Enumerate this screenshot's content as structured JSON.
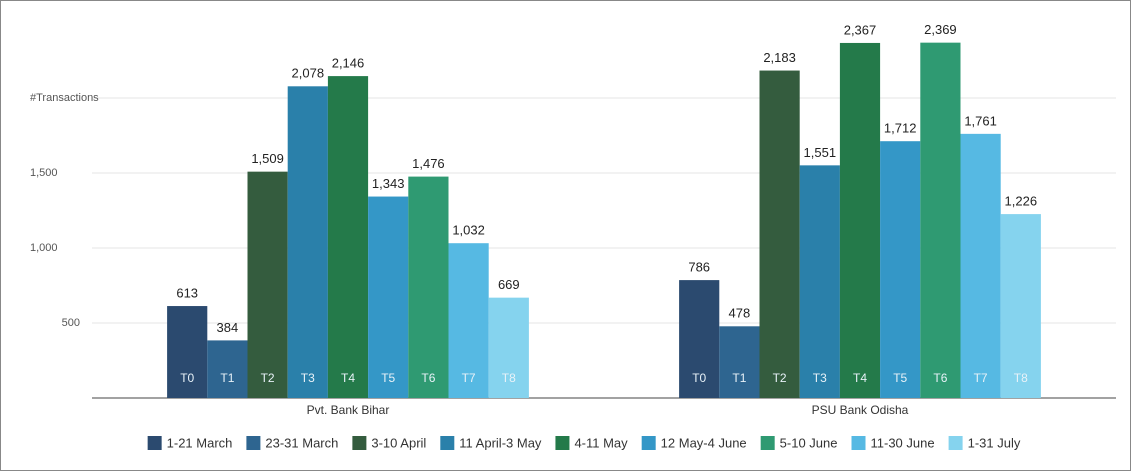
{
  "chart_data": {
    "type": "bar",
    "categories": [
      "Pvt. Bank Bihar",
      "PSU Bank Odisha"
    ],
    "series": [
      {
        "name": "1-21 March",
        "color": "#2b4a6f",
        "values": [
          613,
          786
        ],
        "value_labels": [
          "613",
          "786"
        ]
      },
      {
        "name": "23-31 March",
        "color": "#2e6590",
        "values": [
          384,
          478
        ],
        "value_labels": [
          "384",
          "478"
        ]
      },
      {
        "name": "3-10 April",
        "color": "#345c3e",
        "values": [
          1509,
          2183
        ],
        "value_labels": [
          "1,509",
          "2,183"
        ]
      },
      {
        "name": "11 April-3 May",
        "color": "#2a80aa",
        "values": [
          2078,
          1551
        ],
        "value_labels": [
          "2,078",
          "1,551"
        ]
      },
      {
        "name": "4-11 May",
        "color": "#247a4a",
        "values": [
          2146,
          2367
        ],
        "value_labels": [
          "2,146",
          "2,367"
        ]
      },
      {
        "name": "12 May-4 June",
        "color": "#3497c7",
        "values": [
          1343,
          1712
        ],
        "value_labels": [
          "1,343",
          "1,712"
        ]
      },
      {
        "name": "5-10 June",
        "color": "#2f9a72",
        "values": [
          1476,
          2369
        ],
        "value_labels": [
          "1,476",
          "2,369"
        ]
      },
      {
        "name": "11-30 June",
        "color": "#56b9e3",
        "values": [
          1032,
          1761
        ],
        "value_labels": [
          "1,032",
          "1,761"
        ]
      },
      {
        "name": "1-31 July",
        "color": "#85d3ee",
        "values": [
          669,
          1226
        ],
        "value_labels": [
          "669",
          "1,226"
        ]
      }
    ],
    "bar_labels": [
      "T0",
      "T1",
      "T2",
      "T3",
      "T4",
      "T5",
      "T6",
      "T7",
      "T8"
    ],
    "ylim": [
      0,
      2400
    ],
    "yticks": [
      500,
      {
        "value": 1000,
        "label": "1,000"
      },
      {
        "value": 1500,
        "label": "1,500"
      },
      {
        "value": 2000,
        "label": "#Transactions"
      }
    ],
    "grid": true,
    "legend": "bottom"
  }
}
